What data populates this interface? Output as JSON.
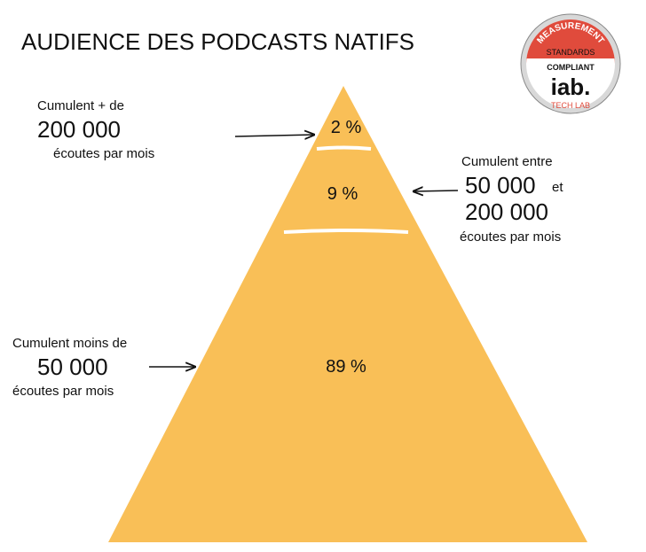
{
  "title": "AUDIENCE DES PODCASTS NATIFS",
  "badge": {
    "top": "MEASUREMENT",
    "middle": "STANDARDS",
    "bottom": "COMPLIANT",
    "logo": "iab.",
    "sub": "TECH LAB"
  },
  "tiers": [
    {
      "share": "2 %",
      "intro": "Cumulent + de",
      "amount": "200 000",
      "unit": "écoutes par mois"
    },
    {
      "share": "9 %",
      "intro": "Cumulent entre",
      "amount": "50 000",
      "joiner": "et",
      "amount2": "200 000",
      "unit": "écoutes par mois"
    },
    {
      "share": "89 %",
      "intro": "Cumulent moins de",
      "amount": "50 000",
      "unit": "écoutes par mois"
    }
  ]
}
